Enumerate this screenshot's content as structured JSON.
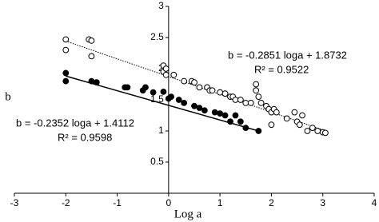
{
  "chart_data": {
    "type": "scatter",
    "x_label": "Log a",
    "y_label": "b",
    "xlim": [
      -3,
      4
    ],
    "xticks": [
      -3,
      -2,
      -1,
      0,
      1,
      2,
      3,
      4
    ],
    "ylim": [
      0,
      3
    ],
    "yticks": [
      0.5,
      1,
      1.5,
      2,
      2.5,
      3
    ],
    "series": [
      {
        "marker": "open",
        "color": "#000000",
        "x": [
          -2.0,
          -2.0,
          -1.55,
          -1.5,
          -1.5,
          -0.1,
          -0.1,
          -0.05,
          -0.05,
          0.1,
          0.3,
          0.45,
          0.5,
          0.6,
          0.75,
          0.8,
          0.85,
          1.0,
          1.1,
          1.2,
          1.25,
          1.3,
          1.4,
          1.5,
          1.6,
          1.7,
          1.7,
          1.75,
          1.8,
          1.9,
          1.95,
          2.0,
          2.05,
          2.1,
          2.0,
          2.3,
          2.45,
          2.5,
          2.55,
          2.6,
          2.7,
          2.8,
          2.9,
          3.0,
          3.05
        ],
        "values": [
          2.47,
          2.3,
          2.47,
          2.45,
          2.2,
          2.05,
          1.95,
          2.0,
          1.9,
          1.9,
          1.8,
          1.8,
          1.78,
          1.7,
          1.7,
          1.65,
          1.65,
          1.62,
          1.6,
          1.55,
          1.55,
          1.5,
          1.5,
          1.45,
          1.45,
          1.65,
          1.75,
          1.55,
          1.45,
          1.4,
          1.35,
          1.3,
          1.35,
          1.3,
          1.1,
          1.2,
          1.3,
          1.15,
          1.1,
          1.25,
          1.0,
          1.05,
          1.0,
          0.98,
          0.97
        ],
        "trendline": {
          "style": "dotted",
          "slope": -0.2851,
          "intercept": 1.8732,
          "x_range": [
            -2.0,
            3.05
          ]
        },
        "annotation": [
          "b = -0.2851 loga + 1.8732",
          "R² = 0.9522"
        ]
      },
      {
        "marker": "filled",
        "color": "#000000",
        "x": [
          -2.0,
          -2.0,
          -1.5,
          -1.4,
          -0.85,
          -0.8,
          -0.5,
          -0.45,
          -0.3,
          -0.1,
          0.0,
          0.05,
          0.2,
          0.3,
          0.5,
          0.6,
          0.7,
          0.9,
          1.0,
          1.1,
          1.2,
          1.3,
          1.4,
          1.5,
          1.75
        ],
        "values": [
          1.93,
          1.8,
          1.8,
          1.78,
          1.7,
          1.7,
          1.65,
          1.7,
          1.62,
          1.63,
          1.52,
          1.55,
          1.5,
          1.45,
          1.4,
          1.37,
          1.33,
          1.3,
          1.28,
          1.25,
          1.15,
          1.25,
          1.15,
          1.05,
          1.0
        ],
        "trendline": {
          "style": "solid",
          "slope": -0.2352,
          "intercept": 1.4112,
          "x_range": [
            -2.0,
            1.75
          ]
        },
        "annotation": [
          "b = -0.2352 loga + 1.4112",
          "R² = 0.9598"
        ]
      }
    ]
  }
}
